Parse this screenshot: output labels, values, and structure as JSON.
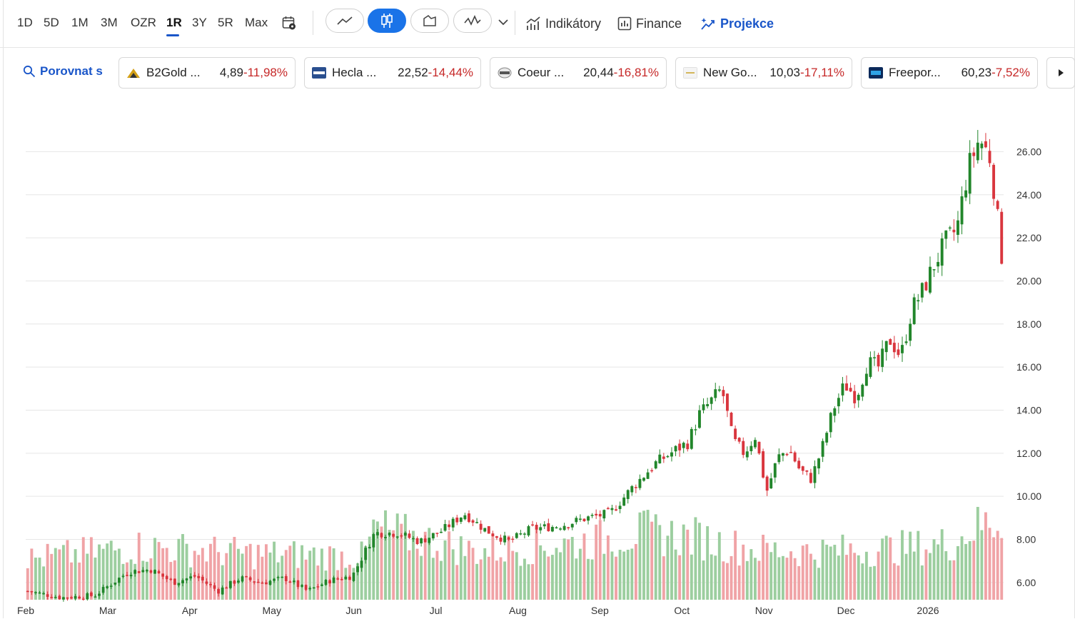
{
  "toolbar": {
    "ranges": [
      "1D",
      "5D",
      "1M",
      "3M",
      "OZR",
      "1R",
      "3Y",
      "5R",
      "Max"
    ],
    "active_range": "1R",
    "chart_types": [
      "line-chart-icon",
      "candlestick-chart-icon",
      "area-chart-icon",
      "mountain-chart-icon"
    ],
    "active_chart_type": "candlestick-chart-icon",
    "indicators_label": "Indikátory",
    "finance_label": "Finance",
    "projection_label": "Projekce",
    "accent": "#1a73e8"
  },
  "compare": {
    "label": "Porovnat s",
    "items": [
      {
        "name": "B2Gold ...",
        "price": "4,89",
        "change": "-11,98%"
      },
      {
        "name": "Hecla ...",
        "price": "22,52",
        "change": "-14,44%"
      },
      {
        "name": "Coeur ...",
        "price": "20,44",
        "change": "-16,81%"
      },
      {
        "name": "New Go...",
        "price": "10,03",
        "change": "-17,11%"
      },
      {
        "name": "Freepor...",
        "price": "60,23",
        "change": "-7,52%"
      }
    ]
  },
  "chart_data": {
    "type": "candlestick",
    "x_labels": [
      "Feb",
      "Mar",
      "Apr",
      "May",
      "Jun",
      "Jul",
      "Aug",
      "Sep",
      "Oct",
      "Nov",
      "Dec",
      "2026"
    ],
    "y_ticks": [
      "6.00",
      "8.00",
      "10.00",
      "12.00",
      "14.00",
      "16.00",
      "18.00",
      "20.00",
      "22.00",
      "24.00",
      "26.00"
    ],
    "ylim": [
      5.2,
      28.4
    ],
    "grid": true,
    "up_color": "#22862b",
    "down_color": "#d9363e",
    "close_path": [
      [
        0,
        5.6
      ],
      [
        3,
        5.3
      ],
      [
        6,
        5.4
      ],
      [
        9,
        6.5
      ],
      [
        11,
        6.6
      ],
      [
        13,
        6.0
      ],
      [
        15,
        6.3
      ],
      [
        17,
        5.6
      ],
      [
        19,
        6.2
      ],
      [
        21,
        6.0
      ],
      [
        23,
        6.2
      ],
      [
        25,
        5.6
      ],
      [
        27,
        6.1
      ],
      [
        29,
        6.3
      ],
      [
        31,
        8.3
      ],
      [
        33,
        8.3
      ],
      [
        35,
        7.9
      ],
      [
        37,
        8.4
      ],
      [
        39,
        9.2
      ],
      [
        41,
        8.4
      ],
      [
        43,
        7.9
      ],
      [
        45,
        8.5
      ],
      [
        47,
        8.6
      ],
      [
        48,
        8.7
      ],
      [
        50,
        9.0
      ],
      [
        52,
        9.2
      ],
      [
        54,
        10.4
      ],
      [
        56,
        11.5
      ],
      [
        58,
        12.2
      ],
      [
        59,
        12.5
      ],
      [
        60,
        13.8
      ],
      [
        61,
        14.4
      ],
      [
        62,
        15.0
      ],
      [
        63,
        12.6
      ],
      [
        64,
        12.0
      ],
      [
        65,
        12.8
      ],
      [
        66,
        10.2
      ],
      [
        67,
        11.8
      ],
      [
        68,
        12.2
      ],
      [
        69,
        11.2
      ],
      [
        70,
        10.8
      ],
      [
        71,
        12.3
      ],
      [
        72,
        14.1
      ],
      [
        73,
        15.2
      ],
      [
        74,
        14.6
      ],
      [
        75,
        16.2
      ],
      [
        76,
        16.0
      ],
      [
        77,
        17.3
      ],
      [
        78,
        16.5
      ],
      [
        79,
        18.7
      ],
      [
        80,
        19.6
      ],
      [
        81,
        20.8
      ],
      [
        82,
        21.8
      ],
      [
        83,
        22.4
      ],
      [
        84,
        25.2
      ],
      [
        85,
        26.6
      ],
      [
        86,
        25.7
      ],
      [
        87,
        21.2
      ]
    ],
    "volume_range": [
      0,
      82
    ],
    "volume_path": [
      [
        0,
        42
      ],
      [
        10,
        55
      ],
      [
        20,
        48
      ],
      [
        30,
        45
      ],
      [
        31,
        74
      ],
      [
        40,
        50
      ],
      [
        50,
        60
      ],
      [
        55,
        70
      ],
      [
        60,
        64
      ],
      [
        62,
        58
      ],
      [
        65,
        52
      ],
      [
        70,
        50
      ],
      [
        75,
        52
      ],
      [
        80,
        55
      ],
      [
        83,
        60
      ],
      [
        84,
        72
      ],
      [
        86,
        80
      ],
      [
        87,
        82
      ]
    ]
  }
}
